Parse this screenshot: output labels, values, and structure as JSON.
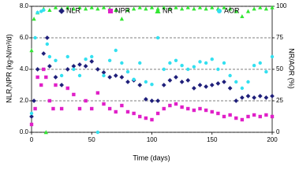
{
  "chart_data": {
    "type": "scatter",
    "xlabel": "Time (days)",
    "ylabel": "NLR,NPR (kg-N/m³/d)",
    "y2label": "NR/AOR (%)",
    "xlim": [
      0,
      200
    ],
    "xticks": [
      0,
      50,
      100,
      150,
      200
    ],
    "ylim": [
      0,
      8
    ],
    "yticks": [
      {
        "value": 0,
        "label": "0.0"
      },
      {
        "value": 2,
        "label": "2.0"
      },
      {
        "value": 4,
        "label": "4.0"
      },
      {
        "value": 6,
        "label": "6.0"
      },
      {
        "value": 8,
        "label": "8.0"
      }
    ],
    "y2lim": [
      0,
      100
    ],
    "y2ticks": [
      0,
      25,
      50,
      75,
      100
    ],
    "grid": true,
    "legend": "top",
    "series": [
      {
        "name": "NLR",
        "color": "#1f1f7a",
        "marker": "diamond",
        "x": [
          0,
          2,
          5,
          10,
          13,
          15,
          20,
          25,
          30,
          35,
          40,
          45,
          50,
          55,
          60,
          65,
          70,
          75,
          80,
          85,
          90,
          95,
          100,
          105,
          110,
          115,
          120,
          125,
          130,
          135,
          140,
          145,
          150,
          155,
          160,
          165,
          170,
          175,
          180,
          185,
          190,
          195,
          200
        ],
        "values": [
          1.0,
          2.0,
          4.0,
          5.0,
          6.0,
          4.2,
          3.5,
          3.0,
          4.0,
          4.2,
          4.3,
          4.2,
          4.5,
          4.0,
          3.8,
          3.5,
          3.6,
          3.5,
          3.2,
          3.3,
          3.0,
          2.1,
          2.0,
          2.0,
          3.0,
          3.3,
          3.5,
          3.2,
          3.3,
          2.8,
          3.0,
          2.9,
          3.0,
          3.1,
          3.2,
          2.8,
          2.0,
          2.2,
          2.3,
          2.2,
          2.3,
          2.2,
          2.3
        ]
      },
      {
        "name": "NPR",
        "color": "#e020c8",
        "marker": "square",
        "x": [
          0,
          3,
          5,
          8,
          10,
          12,
          15,
          18,
          20,
          25,
          30,
          35,
          40,
          45,
          50,
          55,
          60,
          65,
          70,
          75,
          80,
          85,
          90,
          95,
          100,
          105,
          110,
          115,
          120,
          125,
          130,
          135,
          140,
          145,
          150,
          155,
          160,
          165,
          170,
          175,
          180,
          185,
          190,
          195,
          200
        ],
        "values": [
          0.5,
          1.5,
          3.5,
          3.0,
          4.0,
          3.5,
          2.0,
          1.5,
          3.0,
          1.5,
          2.8,
          2.4,
          1.5,
          2.0,
          1.5,
          2.5,
          1.8,
          1.5,
          1.3,
          1.7,
          1.3,
          1.2,
          1.0,
          0.9,
          0.8,
          1.2,
          1.5,
          1.7,
          1.8,
          1.6,
          1.5,
          1.4,
          1.5,
          1.4,
          1.3,
          1.2,
          1.0,
          1.1,
          0.9,
          0.8,
          1.0,
          1.1,
          1.0,
          1.1,
          1.0
        ]
      },
      {
        "name": "NR",
        "color": "#33e633",
        "marker": "triangle",
        "axis": "y2",
        "x": [
          0,
          2,
          5,
          10,
          12,
          15,
          20,
          25,
          30,
          35,
          40,
          45,
          50,
          55,
          60,
          65,
          70,
          75,
          80,
          85,
          90,
          95,
          100,
          105,
          110,
          115,
          120,
          125,
          130,
          135,
          140,
          145,
          150,
          155,
          160,
          165,
          170,
          175,
          180,
          185,
          190,
          195,
          200
        ],
        "values": [
          65,
          90,
          95,
          98,
          0,
          97,
          99,
          98,
          99,
          98,
          99,
          98,
          99,
          98,
          99,
          98,
          97,
          90,
          97,
          98,
          99,
          98,
          99,
          98,
          99,
          98,
          99,
          98,
          99,
          98,
          99,
          98,
          99,
          98,
          99,
          98,
          96,
          92,
          96,
          98,
          99,
          98,
          99
        ]
      },
      {
        "name": "AOR",
        "color": "#33e0f0",
        "marker": "circle",
        "axis": "y2",
        "x": [
          0,
          3,
          5,
          8,
          10,
          13,
          15,
          20,
          25,
          30,
          35,
          40,
          45,
          50,
          55,
          60,
          65,
          70,
          75,
          80,
          85,
          90,
          95,
          100,
          105,
          110,
          115,
          120,
          125,
          130,
          135,
          140,
          145,
          150,
          155,
          160,
          165,
          170,
          175,
          180,
          185,
          190,
          195,
          200
        ],
        "values": [
          15,
          75,
          95,
          96,
          97,
          70,
          60,
          57,
          45,
          60,
          50,
          45,
          58,
          60,
          0,
          45,
          57,
          65,
          55,
          48,
          42,
          55,
          40,
          38,
          75,
          50,
          55,
          57,
          53,
          50,
          52,
          56,
          55,
          58,
          50,
          55,
          45,
          40,
          35,
          40,
          53,
          55,
          48,
          60
        ]
      }
    ]
  }
}
